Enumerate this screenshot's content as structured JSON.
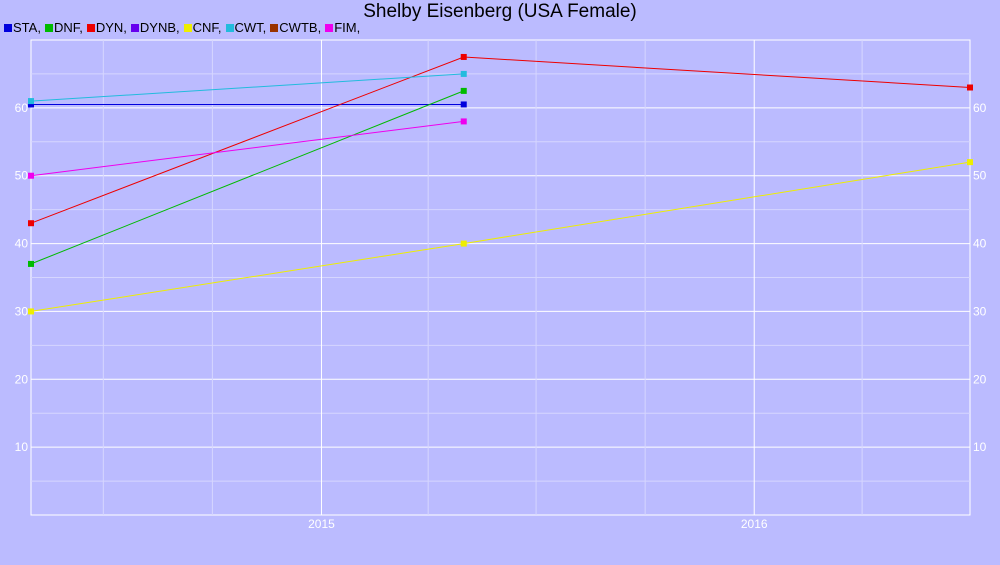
{
  "chart_data": {
    "type": "line",
    "title": "Shelby Eisenberg (USA Female)",
    "xlabel": "",
    "ylabel": "",
    "x_ticks": [
      "2015",
      "2016"
    ],
    "y_ticks": [
      10,
      20,
      30,
      40,
      50,
      60
    ],
    "xlim": [
      "2014-05-01",
      "2016-07-01"
    ],
    "ylim": [
      0,
      70
    ],
    "grid": true,
    "legend_position": "top-left",
    "legend": [
      {
        "name": "STA",
        "color": "#0000dd"
      },
      {
        "name": "DNF",
        "color": "#00bb00"
      },
      {
        "name": "DYN",
        "color": "#ee0000"
      },
      {
        "name": "DYNB",
        "color": "#6600ee"
      },
      {
        "name": "CNF",
        "color": "#eeee00"
      },
      {
        "name": "CWT",
        "color": "#22bbdd"
      },
      {
        "name": "CWTB",
        "color": "#993300"
      },
      {
        "name": "FIM",
        "color": "#ee00ee"
      }
    ],
    "series": [
      {
        "name": "STA",
        "color": "#0000dd",
        "points": [
          [
            "2014-05-01",
            60.5
          ],
          [
            "2015-05-01",
            60.5
          ]
        ]
      },
      {
        "name": "DNF",
        "color": "#00bb00",
        "points": [
          [
            "2014-05-01",
            37
          ],
          [
            "2015-05-01",
            62.5
          ]
        ]
      },
      {
        "name": "DYN",
        "color": "#ee0000",
        "points": [
          [
            "2014-05-01",
            43
          ],
          [
            "2015-05-01",
            67.5
          ],
          [
            "2016-07-01",
            63
          ]
        ]
      },
      {
        "name": "CNF",
        "color": "#eeee00",
        "points": [
          [
            "2014-05-01",
            30
          ],
          [
            "2015-05-01",
            40
          ],
          [
            "2016-07-01",
            52
          ]
        ]
      },
      {
        "name": "CWT",
        "color": "#22bbdd",
        "points": [
          [
            "2014-05-01",
            61
          ],
          [
            "2015-05-01",
            65
          ]
        ]
      },
      {
        "name": "FIM",
        "color": "#ee00ee",
        "points": [
          [
            "2014-05-01",
            50
          ],
          [
            "2015-05-01",
            58
          ]
        ]
      }
    ]
  }
}
